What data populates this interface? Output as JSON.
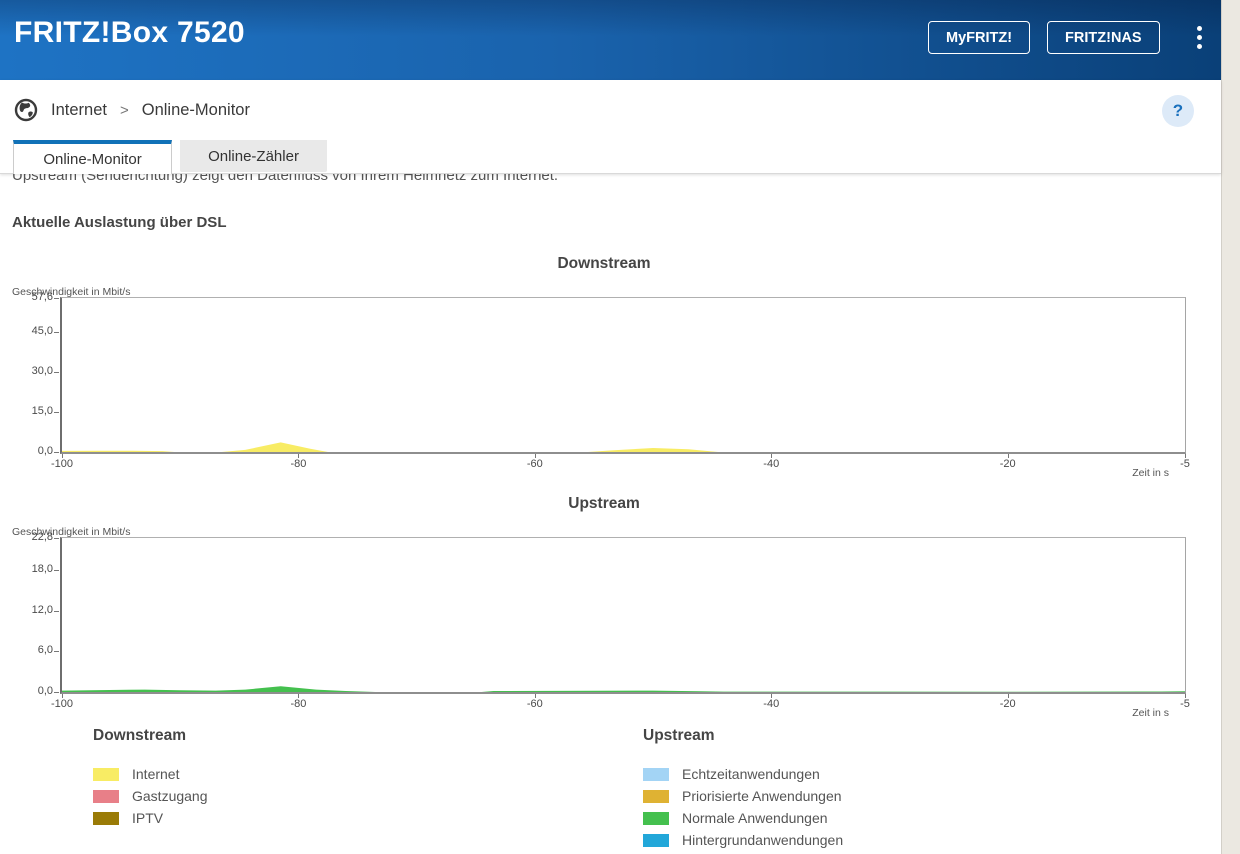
{
  "header": {
    "title": "FRITZ!Box 7520",
    "myfritz_button": "MyFRITZ!",
    "fritznas_button": "FRITZ!NAS"
  },
  "breadcrumb": {
    "section": "Internet",
    "separator": ">",
    "page": "Online-Monitor",
    "help_label": "?"
  },
  "tabs": [
    {
      "label": "Online-Monitor",
      "active": true
    },
    {
      "label": "Online-Zähler",
      "active": false
    }
  ],
  "content": {
    "intro_text": "Upstream (Senderichtung) zeigt den Datenfluss von Ihrem Heimnetz zum Internet.",
    "section_title": "Aktuelle Auslastung über DSL"
  },
  "chart_data": [
    {
      "type": "area",
      "title": "Downstream",
      "ylabel": "Geschwindigkeit in Mbit/s",
      "xlabel": "Zeit in s",
      "xlim": [
        -100,
        -5
      ],
      "ylim": [
        0,
        57.6
      ],
      "grid": false,
      "yticks": [
        {
          "value": 0,
          "label": "0,0"
        },
        {
          "value": 15,
          "label": "15,0"
        },
        {
          "value": 30,
          "label": "30,0"
        },
        {
          "value": 45,
          "label": "45,0"
        },
        {
          "value": 57.6,
          "label": "57,6"
        }
      ],
      "xticks": [
        {
          "value": -100,
          "label": "-100"
        },
        {
          "value": -80,
          "label": "-80"
        },
        {
          "value": -60,
          "label": "-60"
        },
        {
          "value": -40,
          "label": "-40"
        },
        {
          "value": -20,
          "label": "-20"
        },
        {
          "value": -5,
          "label": "-5"
        }
      ],
      "series": [
        {
          "name": "Internet",
          "color": "#f8ec64",
          "points": [
            [
              -100,
              0.4
            ],
            [
              -97,
              0.45
            ],
            [
              -94,
              0.5
            ],
            [
              -91.5,
              0.35
            ],
            [
              -90.5,
              0
            ],
            [
              -86.5,
              0
            ],
            [
              -84.5,
              0.8
            ],
            [
              -81.5,
              3.6
            ],
            [
              -79,
              1.2
            ],
            [
              -77.5,
              0
            ],
            [
              -55.5,
              0
            ],
            [
              -53.5,
              0.6
            ],
            [
              -50,
              1.5
            ],
            [
              -47,
              1.0
            ],
            [
              -44.5,
              0
            ],
            [
              -5,
              0
            ]
          ]
        },
        {
          "name": "Gastzugang",
          "color": "#e87f88",
          "points": []
        },
        {
          "name": "IPTV",
          "color": "#9a7b07",
          "points": []
        }
      ]
    },
    {
      "type": "area",
      "title": "Upstream",
      "ylabel": "Geschwindigkeit in Mbit/s",
      "xlabel": "Zeit in s",
      "xlim": [
        -100,
        -5
      ],
      "ylim": [
        0,
        22.8
      ],
      "grid": false,
      "yticks": [
        {
          "value": 0,
          "label": "0,0"
        },
        {
          "value": 6,
          "label": "6,0"
        },
        {
          "value": 12,
          "label": "12,0"
        },
        {
          "value": 18,
          "label": "18,0"
        },
        {
          "value": 22.8,
          "label": "22,8"
        }
      ],
      "xticks": [
        {
          "value": -100,
          "label": "-100"
        },
        {
          "value": -80,
          "label": "-80"
        },
        {
          "value": -60,
          "label": "-60"
        },
        {
          "value": -40,
          "label": "-40"
        },
        {
          "value": -20,
          "label": "-20"
        },
        {
          "value": -5,
          "label": "-5"
        }
      ],
      "series": [
        {
          "name": "Echtzeitanwendungen",
          "color": "#a3d4f5",
          "points": []
        },
        {
          "name": "Priorisierte Anwendungen",
          "color": "#dfb233",
          "points": []
        },
        {
          "name": "Normale Anwendungen",
          "color": "#44c04e",
          "points": [
            [
              -100,
              0.2
            ],
            [
              -96,
              0.3
            ],
            [
              -93,
              0.35
            ],
            [
              -90,
              0.25
            ],
            [
              -87,
              0.2
            ],
            [
              -84.5,
              0.35
            ],
            [
              -81.5,
              0.85
            ],
            [
              -78.5,
              0.35
            ],
            [
              -76,
              0.15
            ],
            [
              -73.5,
              0
            ],
            [
              -64.5,
              0
            ],
            [
              -63.5,
              0.15
            ],
            [
              -50,
              0.2
            ],
            [
              -46,
              0.12
            ],
            [
              -44,
              0.06
            ],
            [
              -20,
              0.05
            ],
            [
              -7,
              0.08
            ],
            [
              -5,
              0.1
            ]
          ]
        },
        {
          "name": "Hintergrundanwendungen",
          "color": "#22a7d9",
          "points": []
        }
      ]
    }
  ],
  "legends": [
    {
      "title": "Downstream",
      "items": [
        {
          "label": "Internet",
          "color": "#f8ec64"
        },
        {
          "label": "Gastzugang",
          "color": "#e87f88"
        },
        {
          "label": "IPTV",
          "color": "#9a7b07"
        }
      ]
    },
    {
      "title": "Upstream",
      "items": [
        {
          "label": "Echtzeitanwendungen",
          "color": "#a3d4f5"
        },
        {
          "label": "Priorisierte Anwendungen",
          "color": "#dfb233"
        },
        {
          "label": "Normale Anwendungen",
          "color": "#44c04e"
        },
        {
          "label": "Hintergrundanwendungen",
          "color": "#22a7d9"
        }
      ]
    }
  ],
  "colors": {
    "accent_blue": "#1172b8",
    "header_gradient_left": "#1e73c4",
    "header_gradient_right": "#0a4078"
  }
}
